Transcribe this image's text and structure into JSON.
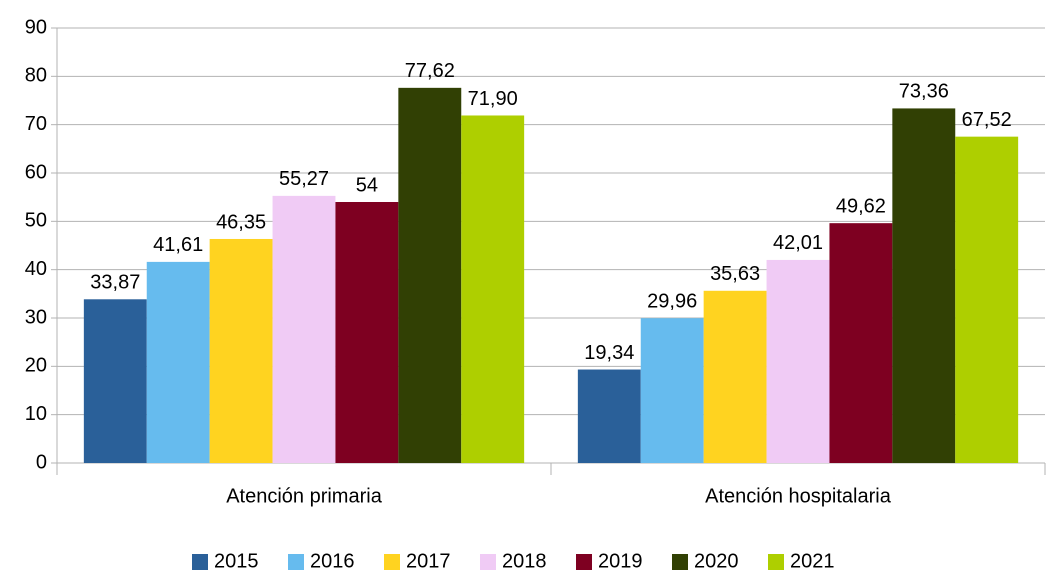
{
  "chart_data": {
    "type": "bar",
    "categories": [
      "Atención primaria",
      "Atención hospitalaria"
    ],
    "series": [
      {
        "name": "2015",
        "color": "#2a6099",
        "values": [
          33.87,
          19.34
        ],
        "value_labels": [
          "33,87",
          "19,34"
        ]
      },
      {
        "name": "2016",
        "color": "#66bbee",
        "values": [
          41.61,
          29.96
        ],
        "value_labels": [
          "41,61",
          "29,96"
        ]
      },
      {
        "name": "2017",
        "color": "#ffd320",
        "values": [
          46.35,
          35.63
        ],
        "value_labels": [
          "46,35",
          "35,63"
        ]
      },
      {
        "name": "2018",
        "color": "#f0cbf5",
        "values": [
          55.27,
          42.01
        ],
        "value_labels": [
          "55,27",
          "42,01"
        ]
      },
      {
        "name": "2019",
        "color": "#7e0021",
        "values": [
          54,
          49.62
        ],
        "value_labels": [
          "54",
          "49,62"
        ]
      },
      {
        "name": "2020",
        "color": "#314004",
        "values": [
          77.62,
          73.36
        ],
        "value_labels": [
          "77,62",
          "73,36"
        ]
      },
      {
        "name": "2021",
        "color": "#aecf00",
        "values": [
          71.9,
          67.52
        ],
        "value_labels": [
          "71,90",
          "67,52"
        ]
      }
    ],
    "ylim": [
      0,
      90
    ],
    "yticks": [
      0,
      10,
      20,
      30,
      40,
      50,
      60,
      70,
      80,
      90
    ],
    "grid": true,
    "legend": "bottom"
  }
}
